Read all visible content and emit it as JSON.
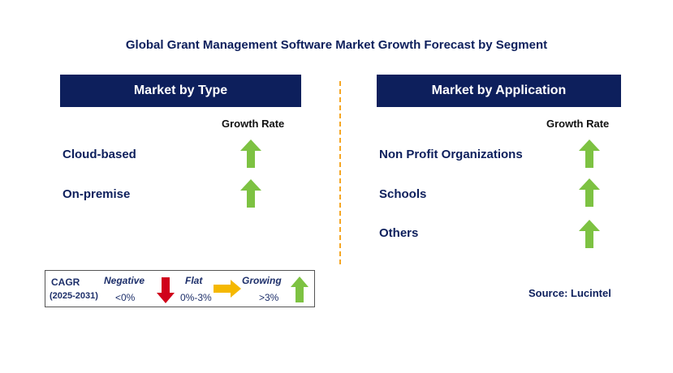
{
  "title": "Global Grant Management Software Market Growth Forecast by Segment",
  "left_panel": {
    "header": "Market by Type",
    "column_header": "Growth Rate",
    "rows": [
      {
        "label": "Cloud-based",
        "trend": "growing"
      },
      {
        "label": "On-premise",
        "trend": "growing"
      }
    ]
  },
  "right_panel": {
    "header": "Market by Application",
    "column_header": "Growth Rate",
    "rows": [
      {
        "label": "Non Profit Organizations",
        "trend": "growing"
      },
      {
        "label": "Schools",
        "trend": "growing"
      },
      {
        "label": "Others",
        "trend": "growing"
      }
    ]
  },
  "legend": {
    "cagr_label": "CAGR",
    "period": "(2025-2031)",
    "negative_label": "Negative",
    "negative_range": "<0%",
    "flat_label": "Flat",
    "flat_range": "0%-3%",
    "growing_label": "Growing",
    "growing_range": ">3%"
  },
  "source": "Source: Lucintel",
  "colors": {
    "header_bg": "#0d1f5c",
    "growing_arrow": "#7dc242",
    "negative_arrow": "#d0021b",
    "flat_arrow": "#f5b800",
    "divider": "#f5a623"
  }
}
